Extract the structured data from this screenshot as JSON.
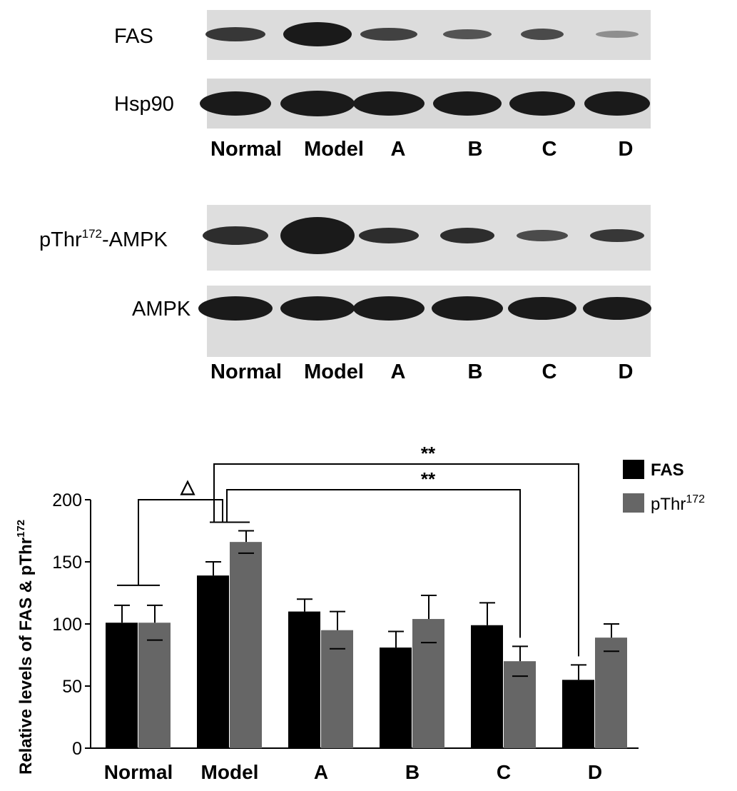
{
  "blots": {
    "panel1": {
      "rows": [
        {
          "label": "FAS"
        },
        {
          "label": "Hsp90"
        }
      ],
      "lanes": [
        "Normal",
        "Model",
        "A",
        "B",
        "C",
        "D"
      ]
    },
    "panel2": {
      "rows": [
        {
          "label_main": "pThr",
          "label_sup": "172",
          "label_tail": "-AMPK"
        },
        {
          "label_main": "AMPK",
          "label_sup": "",
          "label_tail": ""
        }
      ],
      "lanes": [
        "Normal",
        "Model",
        "A",
        "B",
        "C",
        "D"
      ]
    }
  },
  "colors": {
    "fas": "#000000",
    "pthr": "#666666",
    "blot_bg": "#dedede",
    "band": "#1a1a1a"
  },
  "chart_data": {
    "type": "bar",
    "categories": [
      "Normal",
      "Model",
      "A",
      "B",
      "C",
      "D"
    ],
    "series": [
      {
        "name": "FAS",
        "values": [
          101,
          139,
          110,
          81,
          99,
          55
        ],
        "errors": [
          14,
          11,
          10,
          13,
          18,
          12
        ]
      },
      {
        "name": "pThr172",
        "name_main": "pThr",
        "name_sup": "172",
        "values": [
          101,
          166,
          95,
          104,
          70,
          89
        ],
        "errors": [
          14,
          9,
          15,
          19,
          12,
          11
        ]
      }
    ],
    "ylabel_main": "Relative levels of FAS & pThr",
    "ylabel_sup": "172",
    "xlabel": "",
    "ylim": [
      0,
      200
    ],
    "yticks": [
      0,
      50,
      100,
      150,
      200
    ],
    "legend_position": "top-right",
    "grid": false,
    "annotations": [
      {
        "text": "△",
        "between": [
          "Normal",
          "Model"
        ]
      },
      {
        "text": "**",
        "between": [
          "Model",
          "D"
        ]
      },
      {
        "text": "**",
        "between": [
          "Model",
          "C"
        ]
      }
    ]
  }
}
